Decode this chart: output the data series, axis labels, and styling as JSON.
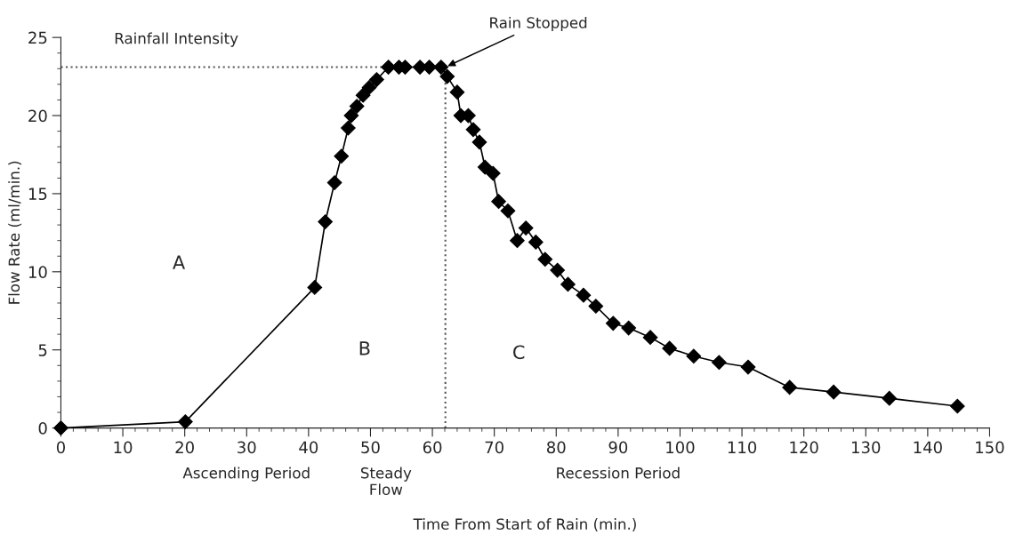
{
  "chart_data": {
    "type": "line",
    "xlabel": "Time From Start of Rain (min.)",
    "ylabel": "Flow Rate (ml/min.)",
    "x": [
      0,
      20.1,
      41.0,
      42.7,
      44.2,
      45.3,
      46.4,
      46.9,
      47.8,
      48.8,
      49.8,
      51.0,
      52.9,
      54.6,
      55.6,
      58.0,
      59.5,
      61.4,
      62.4,
      64.0,
      64.6,
      65.8,
      66.6,
      67.6,
      68.5,
      69.8,
      70.7,
      72.2,
      73.7,
      75.1,
      76.7,
      78.2,
      80.2,
      81.9,
      84.4,
      86.4,
      89.2,
      91.7,
      95.2,
      98.3,
      102.2,
      106.3,
      111.0,
      117.7,
      124.8,
      133.8,
      144.8
    ],
    "series": [
      {
        "color": "#000000",
        "values": [
          0,
          0.4,
          9.0,
          13.2,
          15.7,
          17.4,
          19.2,
          20.0,
          20.6,
          21.3,
          21.8,
          22.3,
          23.1,
          23.1,
          23.1,
          23.1,
          23.1,
          23.1,
          22.5,
          21.5,
          20.0,
          20.0,
          19.1,
          18.3,
          16.7,
          16.3,
          14.5,
          13.9,
          12.0,
          12.8,
          11.9,
          10.8,
          10.1,
          9.2,
          8.5,
          7.8,
          6.7,
          6.4,
          5.8,
          5.1,
          4.6,
          4.2,
          3.9,
          2.6,
          2.3,
          1.9,
          1.4
        ]
      }
    ],
    "xlim": [
      0,
      150
    ],
    "xticks": [
      0,
      10,
      20,
      30,
      40,
      50,
      60,
      70,
      80,
      90,
      100,
      110,
      120,
      130,
      140,
      150
    ],
    "ylim": [
      0,
      25
    ],
    "yticks": [
      0,
      5,
      10,
      15,
      20,
      25
    ],
    "marker": "diamond",
    "line_style": "solid",
    "grid": false,
    "legend": false,
    "ref_lines": [
      {
        "axis": "y",
        "value": 23.1,
        "label": "Rainfall Intensity",
        "color": "#555555",
        "line_style": "dotted"
      },
      {
        "axis": "x",
        "value": 62.1,
        "label": "Rain Stopped",
        "color": "#555555",
        "line_style": "dotted"
      }
    ],
    "annotations": [
      "A",
      "B",
      "C",
      "Ascending Period",
      "Steady\nFlow",
      "Recession Period"
    ]
  }
}
